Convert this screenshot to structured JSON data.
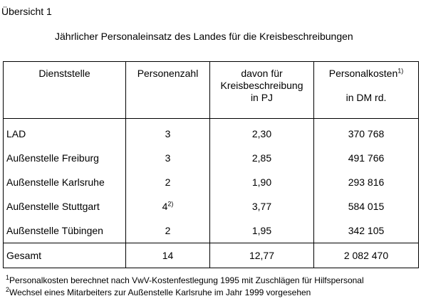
{
  "overview_label": "Übersicht 1",
  "title": "Jährlicher Personaleinsatz des Landes für die Kreisbeschreibungen",
  "table": {
    "headers": {
      "dienststelle": "Dienststelle",
      "personenzahl": "Personenzahl",
      "davon_line1": "davon für",
      "davon_line2": "Kreisbeschreibung",
      "davon_line3": "in PJ",
      "kosten": "Personalkosten",
      "kosten_note": "1)",
      "kosten_unit": "in DM rd."
    },
    "rows": [
      {
        "dienststelle": "LAD",
        "personenzahl": "3",
        "personenzahl_note": "",
        "pj": "2,30",
        "kosten": "370 768"
      },
      {
        "dienststelle": "Außenstelle Freiburg",
        "personenzahl": "3",
        "personenzahl_note": "",
        "pj": "2,85",
        "kosten": "491 766"
      },
      {
        "dienststelle": "Außenstelle Karlsruhe",
        "personenzahl": "2",
        "personenzahl_note": "",
        "pj": "1,90",
        "kosten": "293 816"
      },
      {
        "dienststelle": "Außenstelle Stuttgart",
        "personenzahl": "4",
        "personenzahl_note": "2)",
        "pj": "3,77",
        "kosten": "584 015"
      },
      {
        "dienststelle": "Außenstelle Tübingen",
        "personenzahl": "2",
        "personenzahl_note": "",
        "pj": "1,95",
        "kosten": "342 105"
      }
    ],
    "total": {
      "dienststelle": "Gesamt",
      "personenzahl": "14",
      "pj": "12,77",
      "kosten": "2 082 470"
    }
  },
  "footnotes": [
    {
      "marker": "1",
      "text": "Personalkosten berechnet nach VwV-Kostenfestlegung 1995 mit Zuschlägen für Hilfspersonal"
    },
    {
      "marker": "2",
      "text": "Wechsel eines Mitarbeiters zur Außenstelle Karlsruhe im Jahr 1999 vorgesehen"
    }
  ]
}
